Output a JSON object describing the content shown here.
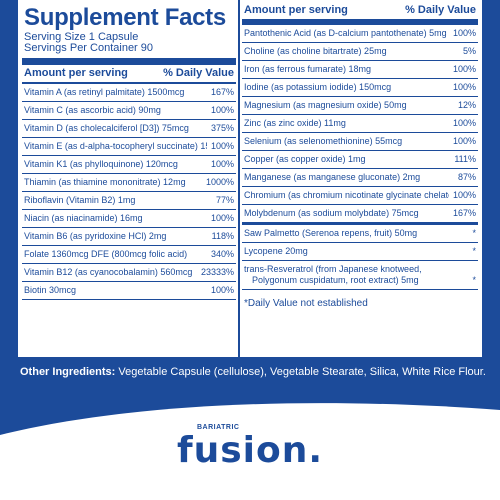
{
  "panel": {
    "title": "Supplement Facts",
    "serving_size": "Serving Size 1 Capsule",
    "servings_per_container": "Servings Per Container 90",
    "header_amount": "Amount per serving",
    "header_dv": "% Daily Value",
    "footnote": "*Daily Value not established"
  },
  "left_rows": [
    {
      "amt": "Vitamin A (as retinyl palmitate) 1500mcg",
      "dv": "167%"
    },
    {
      "amt": "Vitamin C (as ascorbic acid) 90mg",
      "dv": "100%"
    },
    {
      "amt": "Vitamin D (as cholecalciferol [D3]) 75mcg",
      "dv": "375%"
    },
    {
      "amt": "Vitamin E (as d-alpha-tocopheryl succinate) 15mg",
      "dv": "100%"
    },
    {
      "amt": "Vitamin K1 (as phylloquinone) 120mcg",
      "dv": "100%"
    },
    {
      "amt": "Thiamin (as thiamine mononitrate) 12mg",
      "dv": "1000%"
    },
    {
      "amt": "Riboflavin (Vitamin B2) 1mg",
      "dv": "77%"
    },
    {
      "amt": "Niacin (as niacinamide) 16mg",
      "dv": "100%"
    },
    {
      "amt": "Vitamin B6 (as pyridoxine HCl) 2mg",
      "dv": "118%"
    },
    {
      "amt": "Folate 1360mcg DFE (800mcg folic acid)",
      "dv": "340%"
    },
    {
      "amt": "Vitamin B12 (as cyanocobalamin) 560mcg",
      "dv": "23333%"
    },
    {
      "amt": "Biotin 30mcg",
      "dv": "100%"
    }
  ],
  "right_rows": [
    {
      "amt": "Pantothenic Acid (as D-calcium pantothenate) 5mg",
      "dv": "100%"
    },
    {
      "amt": "Choline (as choline bitartrate) 25mg",
      "dv": "5%"
    },
    {
      "amt": "Iron (as ferrous fumarate) 18mg",
      "dv": "100%"
    },
    {
      "amt": "Iodine (as potassium iodide) 150mcg",
      "dv": "100%"
    },
    {
      "amt": "Magnesium (as magnesium oxide) 50mg",
      "dv": "12%"
    },
    {
      "amt": "Zinc (as zinc oxide) 11mg",
      "dv": "100%"
    },
    {
      "amt": "Selenium (as selenomethionine) 55mcg",
      "dv": "100%"
    },
    {
      "amt": "Copper (as copper oxide) 1mg",
      "dv": "111%"
    },
    {
      "amt": "Manganese (as manganese gluconate) 2mg",
      "dv": "87%"
    },
    {
      "amt": "Chromium (as chromium nicotinate glycinate chelate) 35mcg",
      "dv": "100%"
    },
    {
      "amt": "Molybdenum (as sodium molybdate) 75mcg",
      "dv": "167%"
    },
    {
      "amt": "Saw Palmetto (Serenoa repens, fruit) 50mg",
      "dv": "*"
    },
    {
      "amt": "Lycopene 20mg",
      "dv": "*"
    },
    {
      "amt": "trans-Resveratrol (from Japanese knotweed,",
      "amt2": "Polygonum cuspidatum, root extract) 5mg",
      "dv": "*"
    }
  ],
  "ingredients": {
    "label": "Other Ingredients:",
    "text": " Vegetable Capsule (cellulose), Vegetable Stearate, Silica, White Rice Flour."
  },
  "brand": {
    "small": "BARIATRIC",
    "main": "fusion."
  },
  "colors": {
    "brand_blue": "#1c4b9a",
    "background": "#ffffff"
  }
}
